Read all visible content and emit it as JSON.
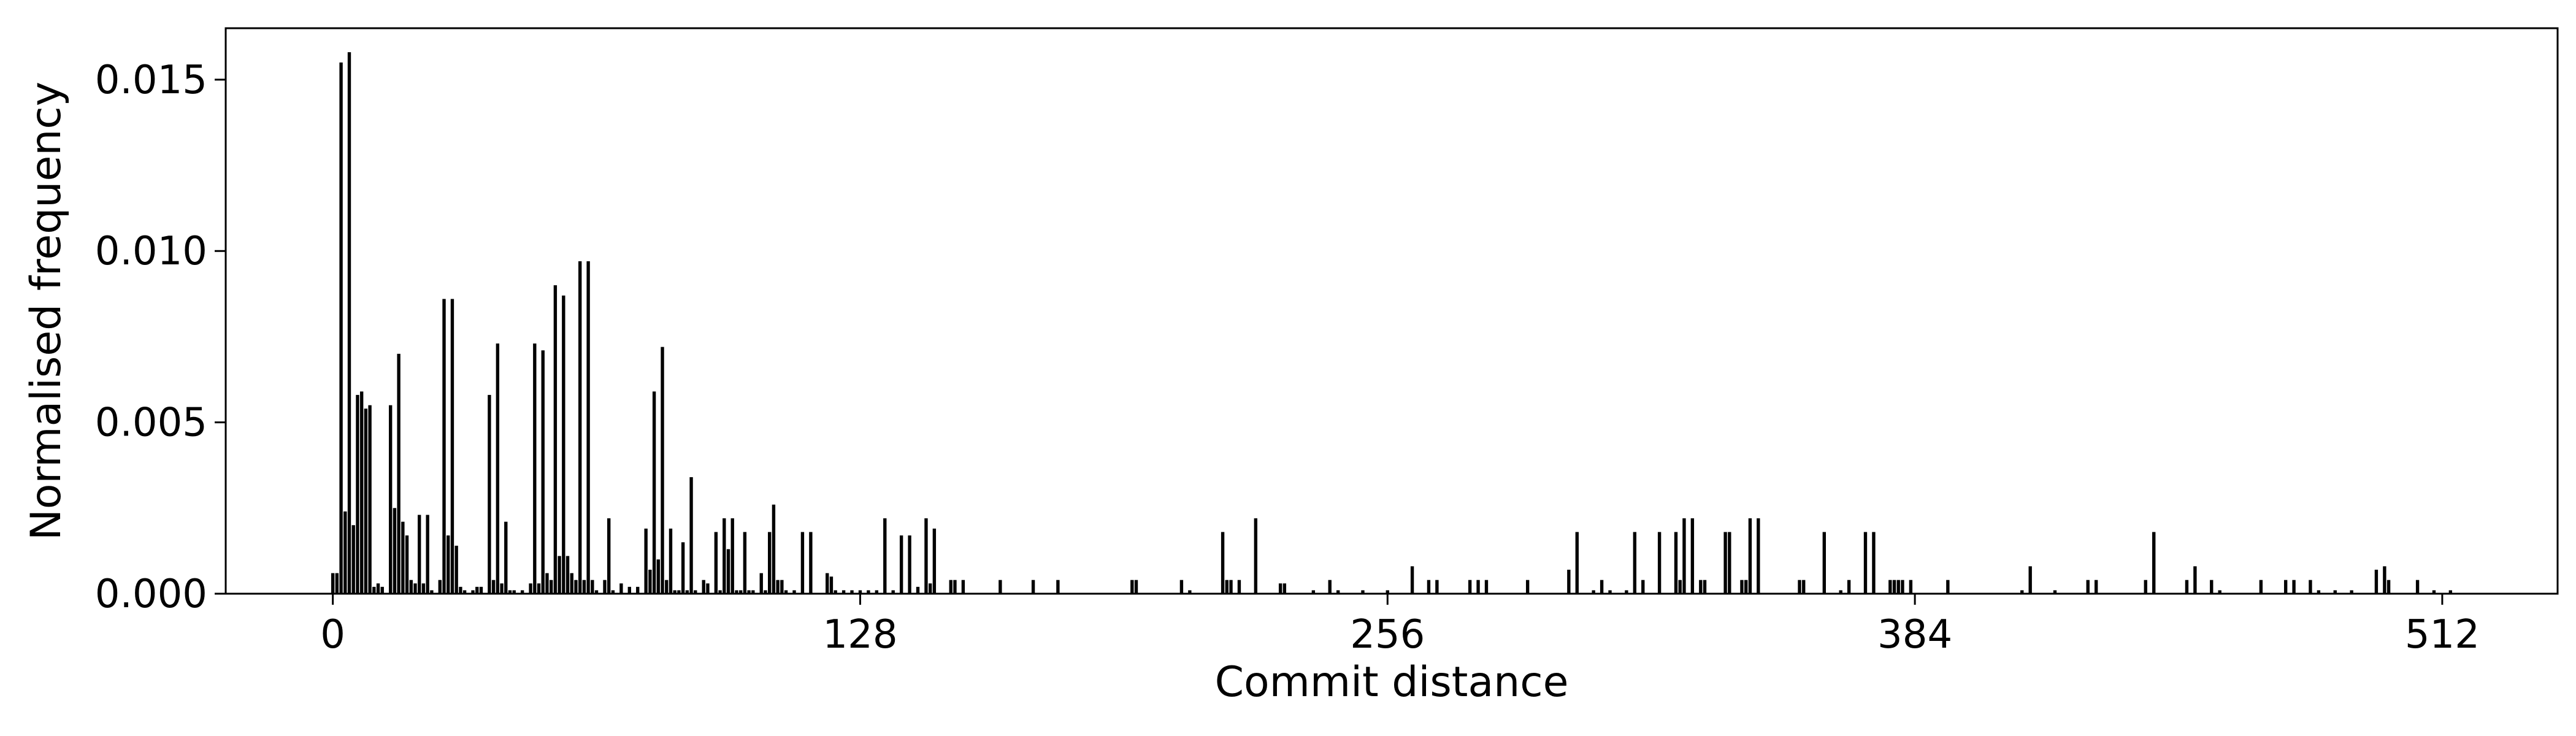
{
  "chart_data": {
    "type": "bar",
    "title": "",
    "xlabel": "Commit distance",
    "ylabel": "Normalised frequency",
    "xlim": [
      -26,
      540
    ],
    "ylim": [
      0,
      0.0165
    ],
    "xticks": [
      "0",
      "128",
      "256",
      "384",
      "512"
    ],
    "xtick_values": [
      0,
      128,
      256,
      384,
      512
    ],
    "yticks": [
      "0.000",
      "0.005",
      "0.010",
      "0.015"
    ],
    "ytick_values": [
      0,
      0.005,
      0.01,
      0.015
    ],
    "grid": false,
    "bar_color": "#000000",
    "points": [
      [
        0,
        0.0006
      ],
      [
        1,
        0.0006
      ],
      [
        2,
        0.0155
      ],
      [
        3,
        0.0024
      ],
      [
        4,
        0.0158
      ],
      [
        5,
        0.002
      ],
      [
        6,
        0.0058
      ],
      [
        7,
        0.0059
      ],
      [
        8,
        0.0054
      ],
      [
        9,
        0.0055
      ],
      [
        10,
        0.0002
      ],
      [
        11,
        0.0003
      ],
      [
        12,
        0.0002
      ],
      [
        14,
        0.0055
      ],
      [
        15,
        0.0025
      ],
      [
        16,
        0.007
      ],
      [
        17,
        0.0021
      ],
      [
        18,
        0.0017
      ],
      [
        19,
        0.0004
      ],
      [
        20,
        0.0003
      ],
      [
        21,
        0.0023
      ],
      [
        22,
        0.0003
      ],
      [
        23,
        0.0023
      ],
      [
        24,
        0.0001
      ],
      [
        26,
        0.0004
      ],
      [
        27,
        0.0086
      ],
      [
        28,
        0.0017
      ],
      [
        29,
        0.0086
      ],
      [
        30,
        0.0014
      ],
      [
        31,
        0.0002
      ],
      [
        32,
        0.0001
      ],
      [
        34,
        0.0001
      ],
      [
        35,
        0.0002
      ],
      [
        36,
        0.0002
      ],
      [
        38,
        0.0058
      ],
      [
        39,
        0.0004
      ],
      [
        40,
        0.0073
      ],
      [
        41,
        0.0003
      ],
      [
        42,
        0.0021
      ],
      [
        43,
        0.0001
      ],
      [
        44,
        0.0001
      ],
      [
        46,
        0.0001
      ],
      [
        48,
        0.0003
      ],
      [
        49,
        0.0073
      ],
      [
        50,
        0.0003
      ],
      [
        51,
        0.0071
      ],
      [
        52,
        0.0006
      ],
      [
        53,
        0.0004
      ],
      [
        54,
        0.009
      ],
      [
        55,
        0.0011
      ],
      [
        56,
        0.0087
      ],
      [
        57,
        0.0011
      ],
      [
        58,
        0.0006
      ],
      [
        59,
        0.0004
      ],
      [
        60,
        0.0097
      ],
      [
        61,
        0.0004
      ],
      [
        62,
        0.0097
      ],
      [
        63,
        0.0004
      ],
      [
        64,
        0.0001
      ],
      [
        66,
        0.0004
      ],
      [
        67,
        0.0022
      ],
      [
        68,
        0.0001
      ],
      [
        70,
        0.0003
      ],
      [
        72,
        0.0002
      ],
      [
        74,
        0.0002
      ],
      [
        76,
        0.0019
      ],
      [
        77,
        0.0007
      ],
      [
        78,
        0.0059
      ],
      [
        79,
        0.001
      ],
      [
        80,
        0.0072
      ],
      [
        81,
        0.0004
      ],
      [
        82,
        0.0019
      ],
      [
        83,
        0.0001
      ],
      [
        84,
        0.0001
      ],
      [
        85,
        0.0015
      ],
      [
        86,
        0.0001
      ],
      [
        87,
        0.0034
      ],
      [
        88,
        0.0001
      ],
      [
        90,
        0.0004
      ],
      [
        91,
        0.0003
      ],
      [
        93,
        0.0018
      ],
      [
        94,
        0.0001
      ],
      [
        95,
        0.0022
      ],
      [
        96,
        0.0013
      ],
      [
        97,
        0.0022
      ],
      [
        98,
        0.0001
      ],
      [
        99,
        0.0001
      ],
      [
        100,
        0.0018
      ],
      [
        101,
        0.0001
      ],
      [
        102,
        0.0001
      ],
      [
        104,
        0.0006
      ],
      [
        105,
        0.0001
      ],
      [
        106,
        0.0018
      ],
      [
        107,
        0.0026
      ],
      [
        108,
        0.0004
      ],
      [
        109,
        0.0004
      ],
      [
        110,
        0.0001
      ],
      [
        112,
        0.0001
      ],
      [
        114,
        0.0018
      ],
      [
        116,
        0.0018
      ],
      [
        120,
        0.0006
      ],
      [
        121,
        0.0005
      ],
      [
        122,
        0.0001
      ],
      [
        124,
        0.0001
      ],
      [
        126,
        0.0001
      ],
      [
        128,
        0.0001
      ],
      [
        130,
        0.0001
      ],
      [
        132,
        0.0001
      ],
      [
        134,
        0.0022
      ],
      [
        136,
        0.0001
      ],
      [
        138,
        0.0017
      ],
      [
        140,
        0.0017
      ],
      [
        142,
        0.0002
      ],
      [
        144,
        0.0022
      ],
      [
        145,
        0.0003
      ],
      [
        146,
        0.0019
      ],
      [
        150,
        0.0004
      ],
      [
        151,
        0.0004
      ],
      [
        153,
        0.0004
      ],
      [
        162,
        0.0004
      ],
      [
        170,
        0.0004
      ],
      [
        176,
        0.0004
      ],
      [
        194,
        0.0004
      ],
      [
        195,
        0.0004
      ],
      [
        206,
        0.0004
      ],
      [
        208,
        0.0001
      ],
      [
        216,
        0.0018
      ],
      [
        217,
        0.0004
      ],
      [
        218,
        0.0004
      ],
      [
        220,
        0.0004
      ],
      [
        224,
        0.0022
      ],
      [
        230,
        0.0003
      ],
      [
        231,
        0.0003
      ],
      [
        238,
        0.0001
      ],
      [
        242,
        0.0004
      ],
      [
        244,
        0.0001
      ],
      [
        250,
        0.0001
      ],
      [
        256,
        0.0001
      ],
      [
        262,
        0.0008
      ],
      [
        266,
        0.0004
      ],
      [
        268,
        0.0004
      ],
      [
        276,
        0.0004
      ],
      [
        278,
        0.0004
      ],
      [
        280,
        0.0004
      ],
      [
        290,
        0.0004
      ],
      [
        300,
        0.0007
      ],
      [
        302,
        0.0018
      ],
      [
        306,
        0.0001
      ],
      [
        308,
        0.0004
      ],
      [
        310,
        0.0001
      ],
      [
        314,
        0.0001
      ],
      [
        316,
        0.0018
      ],
      [
        318,
        0.0004
      ],
      [
        322,
        0.0018
      ],
      [
        326,
        0.0018
      ],
      [
        327,
        0.0004
      ],
      [
        328,
        0.0022
      ],
      [
        330,
        0.0022
      ],
      [
        332,
        0.0004
      ],
      [
        333,
        0.0004
      ],
      [
        338,
        0.0018
      ],
      [
        339,
        0.0018
      ],
      [
        342,
        0.0004
      ],
      [
        343,
        0.0004
      ],
      [
        344,
        0.0022
      ],
      [
        346,
        0.0022
      ],
      [
        356,
        0.0004
      ],
      [
        357,
        0.0004
      ],
      [
        362,
        0.0018
      ],
      [
        366,
        0.0001
      ],
      [
        368,
        0.0004
      ],
      [
        372,
        0.0018
      ],
      [
        374,
        0.0018
      ],
      [
        378,
        0.0004
      ],
      [
        379,
        0.0004
      ],
      [
        380,
        0.0004
      ],
      [
        381,
        0.0004
      ],
      [
        383,
        0.0004
      ],
      [
        392,
        0.0004
      ],
      [
        410,
        0.0001
      ],
      [
        412,
        0.0008
      ],
      [
        418,
        0.0001
      ],
      [
        426,
        0.0004
      ],
      [
        428,
        0.0004
      ],
      [
        440,
        0.0004
      ],
      [
        442,
        0.0018
      ],
      [
        450,
        0.0004
      ],
      [
        452,
        0.0008
      ],
      [
        456,
        0.0004
      ],
      [
        458,
        0.0001
      ],
      [
        468,
        0.0004
      ],
      [
        474,
        0.0004
      ],
      [
        476,
        0.0004
      ],
      [
        480,
        0.0004
      ],
      [
        482,
        0.0001
      ],
      [
        486,
        0.0001
      ],
      [
        490,
        0.0001
      ],
      [
        496,
        0.0007
      ],
      [
        498,
        0.0008
      ],
      [
        499,
        0.0004
      ],
      [
        506,
        0.0004
      ],
      [
        510,
        0.0001
      ],
      [
        514,
        0.0001
      ]
    ]
  }
}
